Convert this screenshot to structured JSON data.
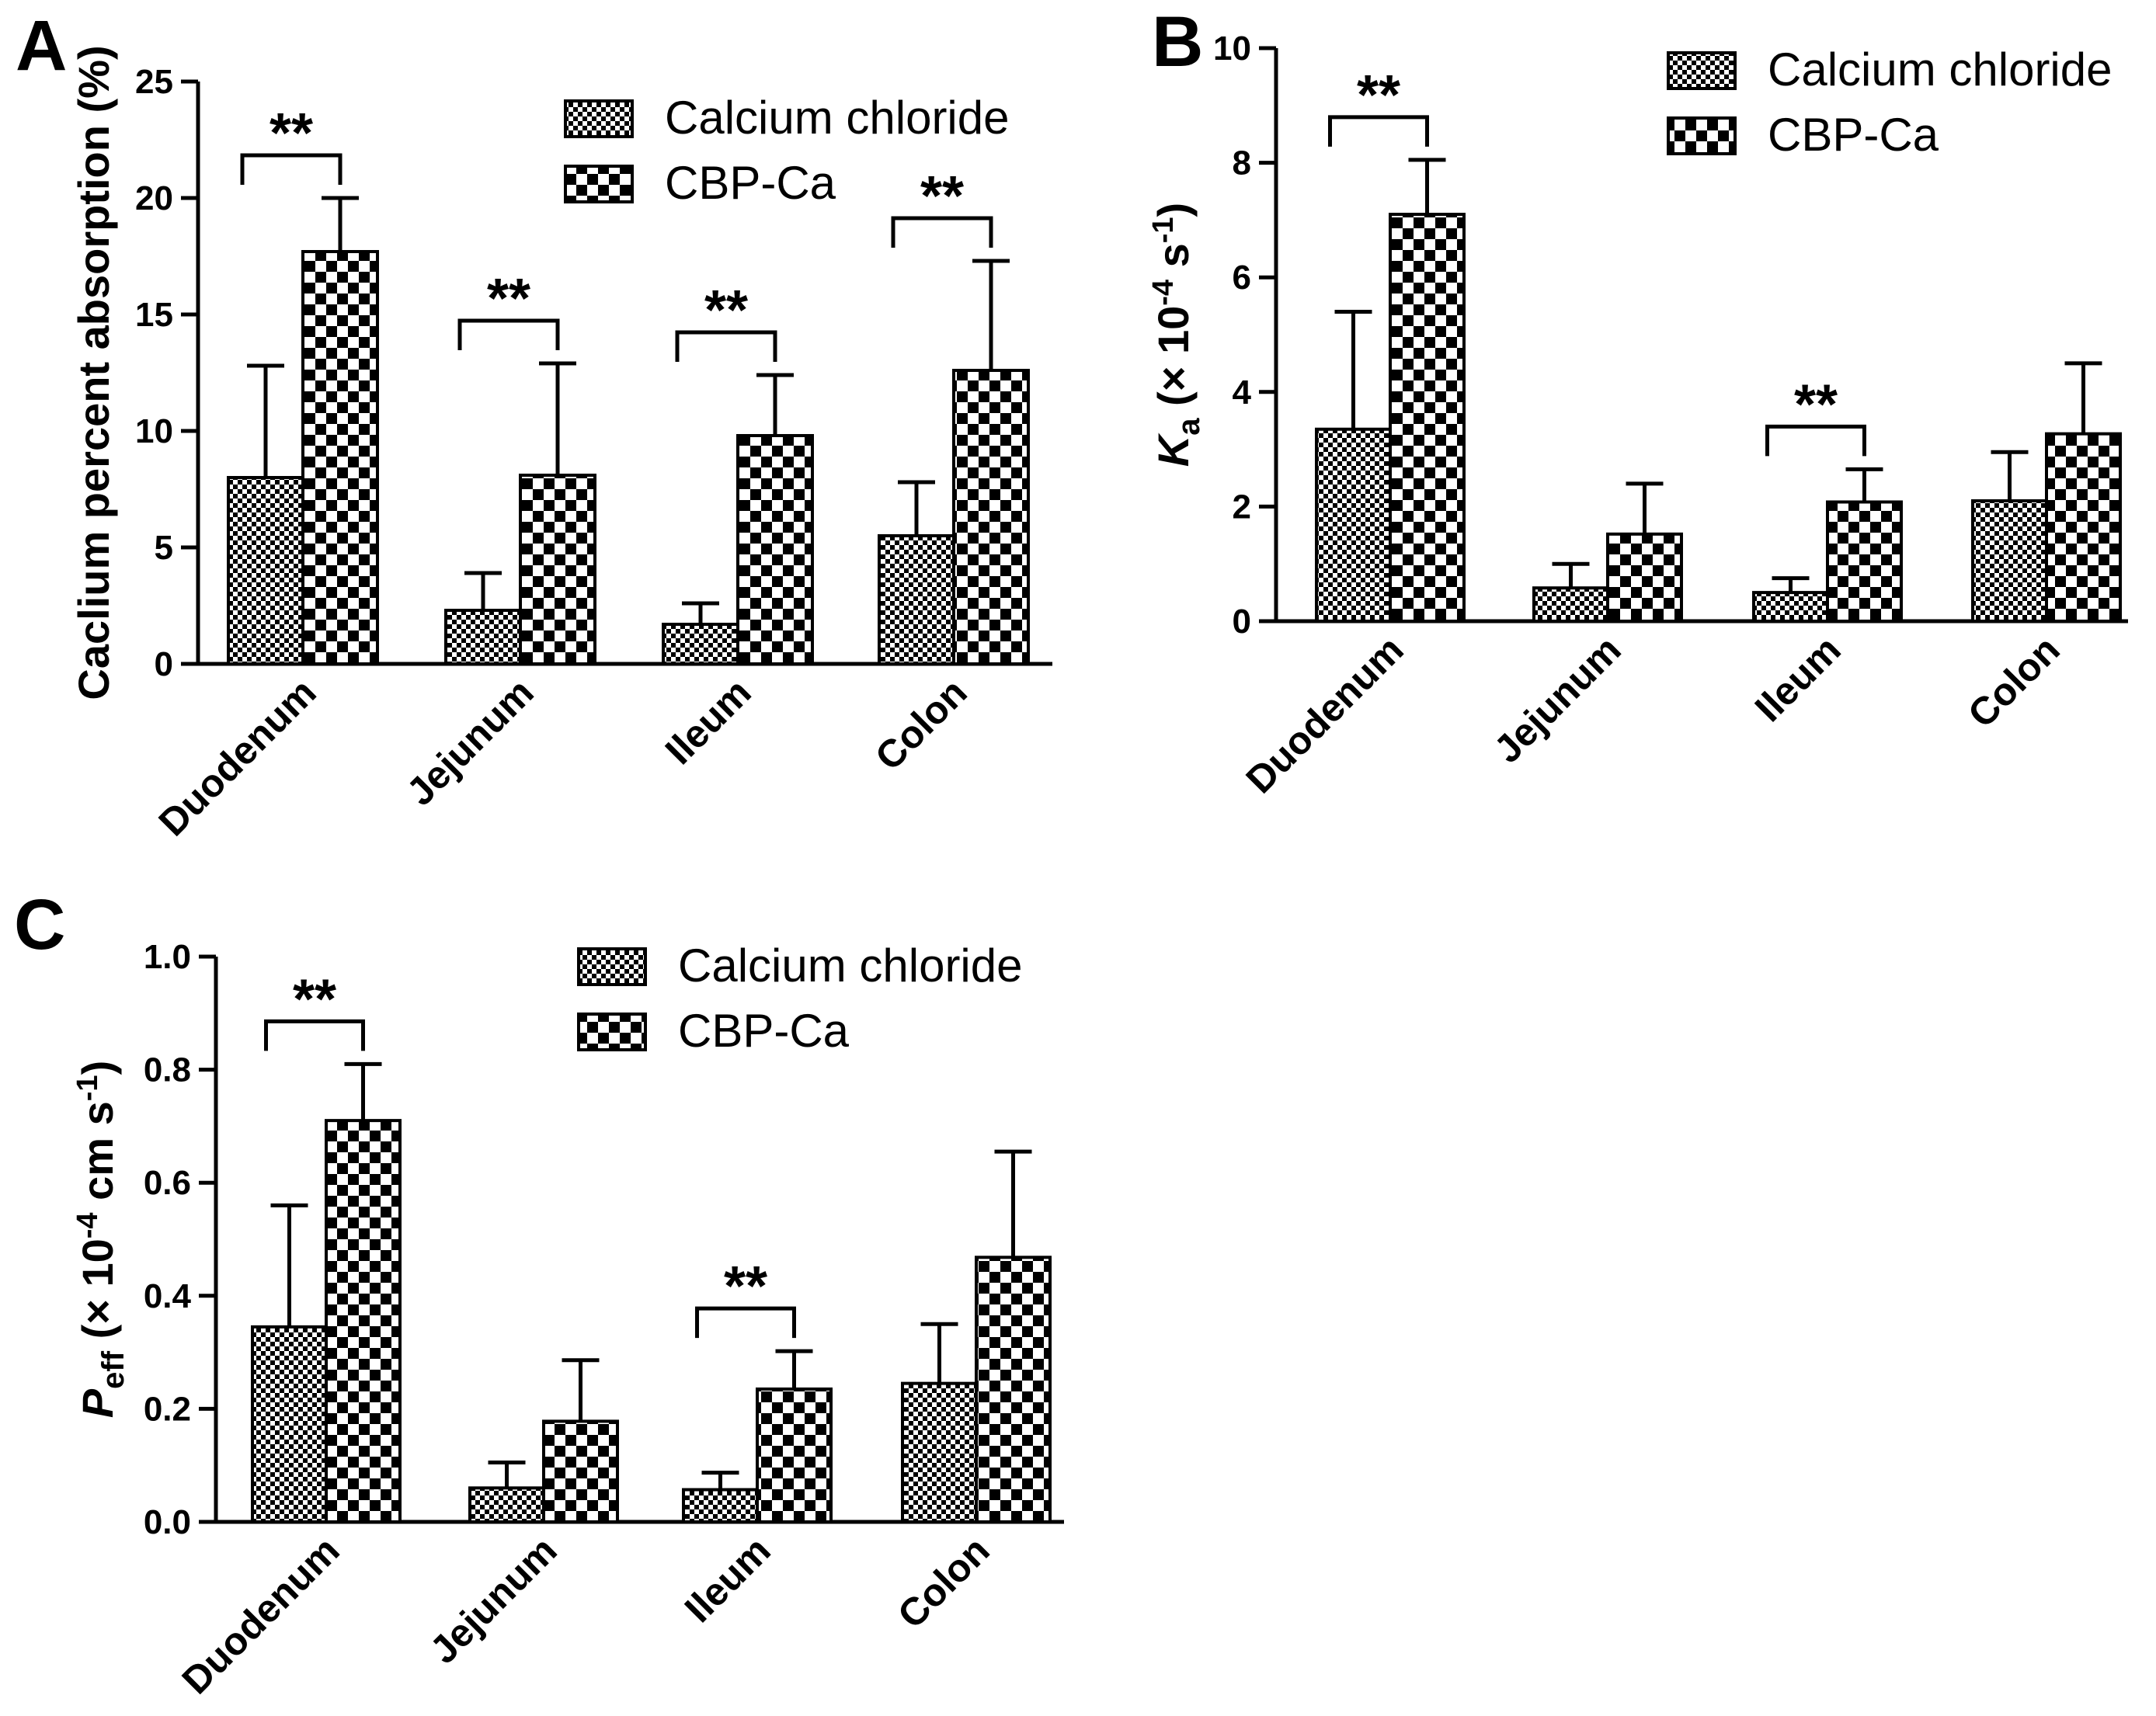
{
  "chart_data": [
    {
      "panel": "A",
      "type": "bar",
      "ylabel": "Caclium percent absorption (%)",
      "ylim": [
        0,
        25
      ],
      "yticks": [
        0,
        5,
        10,
        15,
        20,
        25
      ],
      "categories": [
        "Duodenum",
        "Jejunum",
        "Ileum",
        "Colon"
      ],
      "series": [
        {
          "name": "Calcium chloride",
          "values": [
            8.0,
            2.3,
            1.7,
            5.5
          ],
          "errors": [
            4.8,
            1.6,
            0.9,
            2.3
          ]
        },
        {
          "name": "CBP-Ca",
          "values": [
            17.7,
            8.1,
            9.8,
            12.6
          ],
          "errors": [
            2.3,
            4.8,
            2.6,
            4.7
          ]
        }
      ],
      "significance": [
        "**",
        "**",
        "**",
        "**"
      ],
      "legend": "top-right",
      "grid": false
    },
    {
      "panel": "B",
      "type": "bar",
      "ylabel_main": "K",
      "ylabel_sub": "a",
      "ylabel_rest": " (× 10",
      "ylabel_exp": "-4",
      "ylabel_unit": " s",
      "ylabel_unit_exp": "-1",
      "ylabel_close": ")",
      "ylim": [
        0,
        10
      ],
      "yticks": [
        0,
        2,
        4,
        6,
        8,
        10
      ],
      "categories": [
        "Duodenum",
        "Jejunum",
        "Ileum",
        "Colon"
      ],
      "series": [
        {
          "name": "Calcium chloride",
          "values": [
            3.35,
            0.58,
            0.5,
            2.1
          ],
          "errors": [
            2.05,
            0.42,
            0.25,
            0.85
          ]
        },
        {
          "name": "CBP-Ca",
          "values": [
            7.1,
            1.52,
            2.08,
            3.27
          ],
          "errors": [
            0.95,
            0.88,
            0.57,
            1.23
          ]
        }
      ],
      "significance": [
        "**",
        "",
        "**",
        ""
      ],
      "legend": "top-right",
      "grid": false
    },
    {
      "panel": "C",
      "type": "bar",
      "ylabel_main": "P",
      "ylabel_sub": "eff",
      "ylabel_rest": " (× 10",
      "ylabel_exp": "-4",
      "ylabel_unit": " cm s",
      "ylabel_unit_exp": "-1",
      "ylabel_close": ")",
      "ylim": [
        0,
        1.0
      ],
      "yticks": [
        "0.0",
        "0.2",
        "0.4",
        "0.6",
        "0.8",
        "1.0"
      ],
      "categories": [
        "Duodenum",
        "Jejunum",
        "Ileum",
        "Colon"
      ],
      "series": [
        {
          "name": "Calcium chloride",
          "values": [
            0.345,
            0.06,
            0.057,
            0.245
          ],
          "errors": [
            0.215,
            0.045,
            0.03,
            0.105
          ]
        },
        {
          "name": "CBP-Ca",
          "values": [
            0.71,
            0.178,
            0.235,
            0.468
          ],
          "errors": [
            0.1,
            0.108,
            0.067,
            0.187
          ]
        }
      ],
      "significance": [
        "**",
        "",
        "**",
        ""
      ],
      "legend": "top-right",
      "grid": false
    }
  ],
  "colors": {
    "bar_fill": "#ffffff",
    "pattern": "#000000",
    "axis": "#000000"
  }
}
